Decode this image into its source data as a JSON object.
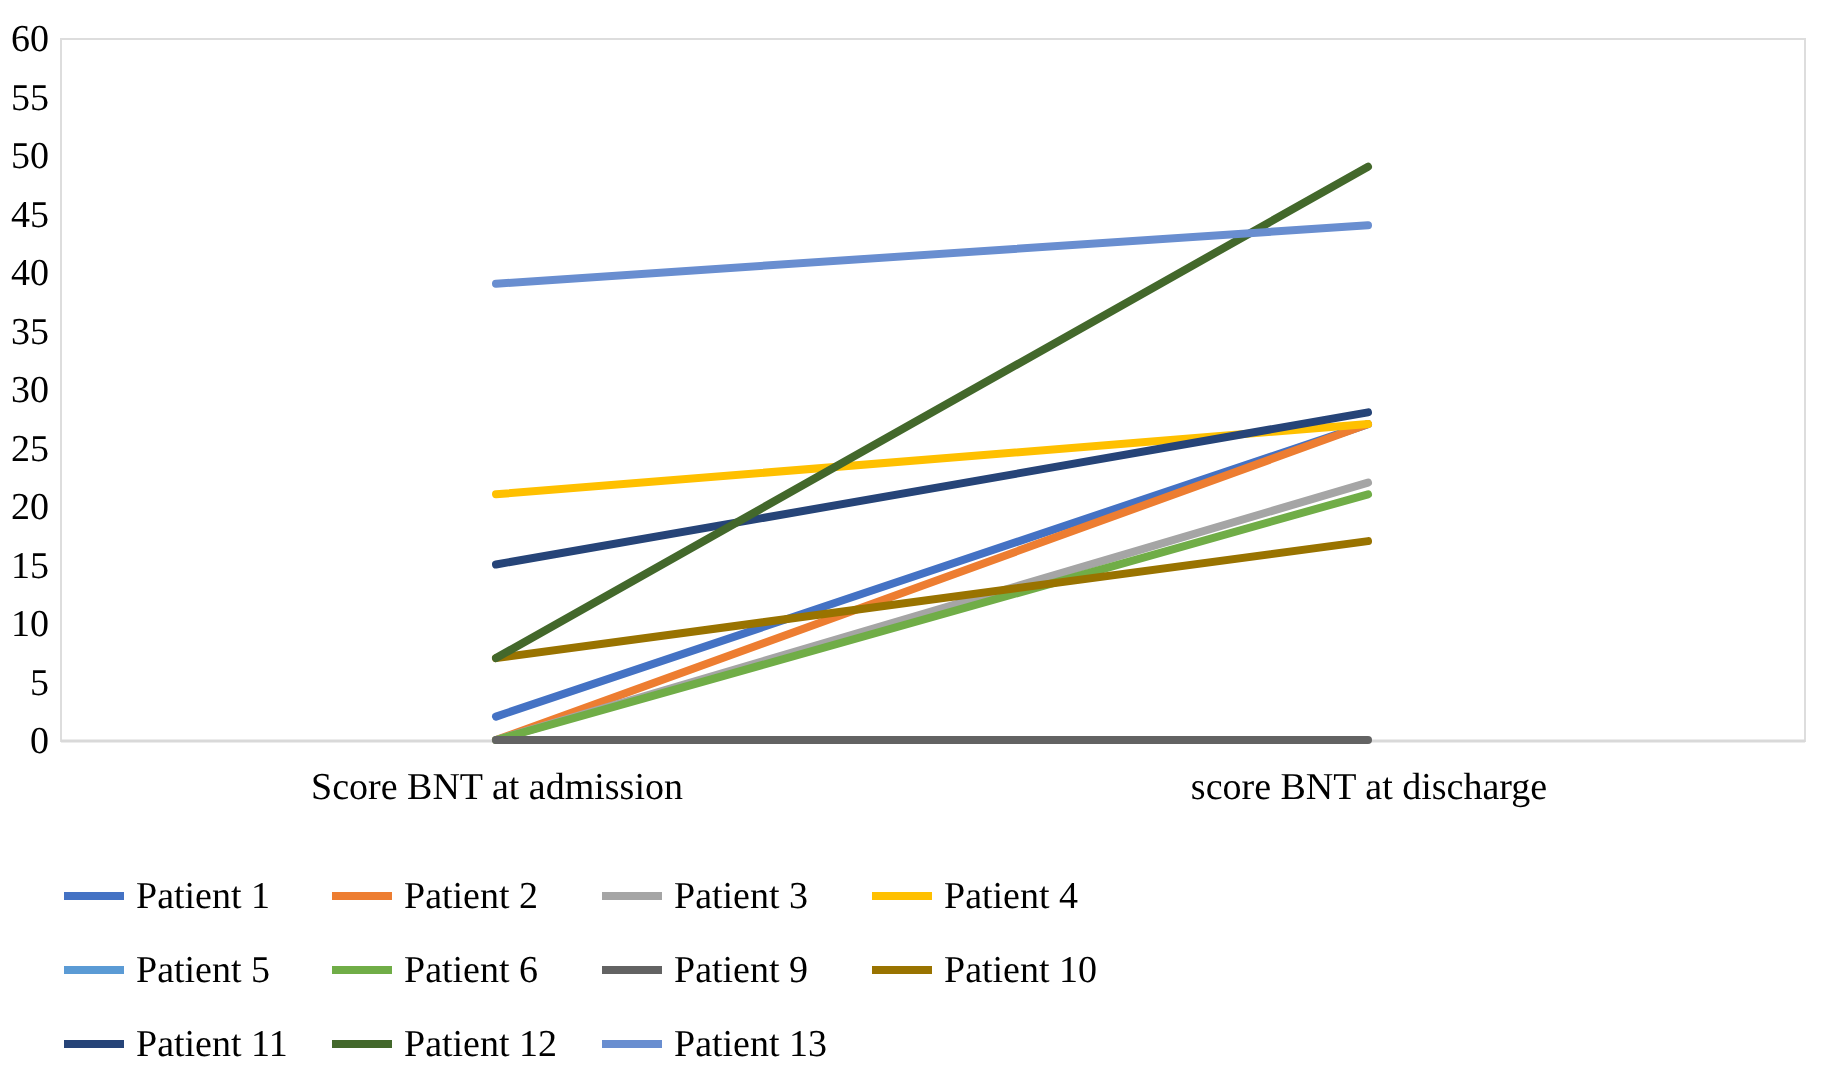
{
  "chart_data": {
    "type": "line",
    "categories": [
      "Score BNT at admission",
      "score BNT at discharge"
    ],
    "ylim": [
      0,
      60
    ],
    "yticks": [
      0,
      5,
      10,
      15,
      20,
      25,
      30,
      35,
      40,
      45,
      50,
      55,
      60
    ],
    "grid": false,
    "legend": "bottom",
    "marker": "none",
    "line_style": "solid",
    "series": [
      {
        "name": "Patient 1",
        "color": "#4472c4",
        "values": [
          2,
          27
        ]
      },
      {
        "name": "Patient 2",
        "color": "#ed7d31",
        "values": [
          0,
          27
        ]
      },
      {
        "name": "Patient 3",
        "color": "#a5a5a5",
        "values": [
          0,
          22
        ]
      },
      {
        "name": "Patient 4",
        "color": "#ffc000",
        "values": [
          21,
          27
        ]
      },
      {
        "name": "Patient 5",
        "color": "#5b9bd5",
        "values": [
          null,
          null
        ]
      },
      {
        "name": "Patient 6",
        "color": "#70ad47",
        "values": [
          0,
          21
        ]
      },
      {
        "name": "Patient 9",
        "color": "#636363",
        "values": [
          0,
          0
        ]
      },
      {
        "name": "Patient 10",
        "color": "#997300",
        "values": [
          7,
          17
        ]
      },
      {
        "name": "Patient 11",
        "color": "#264478",
        "values": [
          15,
          28
        ]
      },
      {
        "name": "Patient 12",
        "color": "#43682b",
        "values": [
          7,
          49
        ]
      },
      {
        "name": "Patient 13",
        "color": "#698ed0",
        "values": [
          39,
          44
        ]
      }
    ]
  }
}
